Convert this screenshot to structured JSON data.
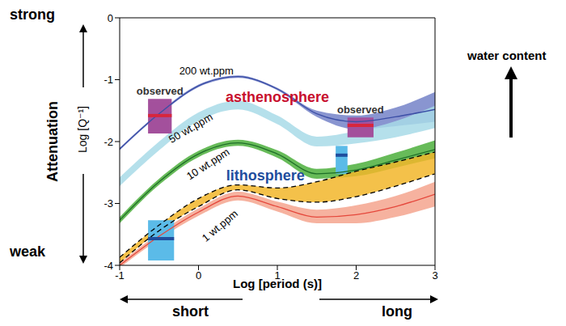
{
  "chart_data": {
    "type": "line",
    "x_label": "Log [period (s)]",
    "y_label": "Log [Q⁻¹]",
    "xlim": [
      -1,
      3
    ],
    "xticks": [
      -1,
      0,
      1,
      2,
      3
    ],
    "ylim": [
      -4,
      0
    ],
    "yticks": [
      -4,
      -3,
      -2,
      -1,
      0
    ],
    "grid": false,
    "x": [
      -1,
      -0.5,
      0,
      0.5,
      1,
      1.5,
      2,
      2.5,
      3
    ],
    "series": [
      {
        "name": "200 wt.ppm",
        "color": "#3b4ea6",
        "values": [
          -2.12,
          -1.55,
          -1.1,
          -0.95,
          -1.15,
          -1.55,
          -1.68,
          -1.6,
          -1.48
        ],
        "band": {
          "color": "#7482c8",
          "lower": [
            -2.14,
            -1.57,
            -1.12,
            -0.97,
            -1.17,
            -1.6,
            -1.8,
            -1.75,
            -1.68
          ],
          "upper": [
            -2.1,
            -1.53,
            -1.08,
            -0.93,
            -1.13,
            -1.5,
            -1.58,
            -1.45,
            -1.2
          ]
        }
      },
      {
        "name": "50 wt.ppm",
        "band": {
          "color": "#a8dbe8",
          "lower": [
            -2.72,
            -2.14,
            -1.67,
            -1.48,
            -1.72,
            -2.08,
            -2.03,
            -1.93,
            -1.78
          ],
          "upper": [
            -2.58,
            -2.0,
            -1.53,
            -1.34,
            -1.58,
            -1.92,
            -1.83,
            -1.67,
            -1.42
          ]
        }
      },
      {
        "name": "10 wt.ppm",
        "color": "#1e6e28",
        "values": [
          -3.27,
          -2.65,
          -2.2,
          -2.02,
          -2.2,
          -2.52,
          -2.46,
          -2.3,
          -2.13
        ],
        "band": {
          "color": "#4caf3c",
          "lower": [
            -3.32,
            -2.7,
            -2.25,
            -2.07,
            -2.26,
            -2.6,
            -2.56,
            -2.42,
            -2.27
          ],
          "upper": [
            -3.22,
            -2.6,
            -2.15,
            -1.97,
            -2.14,
            -2.44,
            -2.36,
            -2.18,
            -1.98
          ]
        }
      },
      {
        "band": {
          "color": "#f2b62a",
          "line_style": "dashed",
          "lower": [
            -3.96,
            -3.44,
            -3.05,
            -2.78,
            -2.92,
            -2.98,
            -2.89,
            -2.72,
            -2.52
          ],
          "upper": [
            -3.87,
            -3.35,
            -2.92,
            -2.7,
            -2.75,
            -2.65,
            -2.48,
            -2.33,
            -2.17
          ]
        }
      },
      {
        "name": "1 wt.ppm",
        "color": "#e5483c",
        "values": [
          -4.0,
          -3.53,
          -3.14,
          -2.88,
          -3.05,
          -3.22,
          -3.18,
          -3.05,
          -2.85
        ],
        "band": {
          "color": "#f5a48e",
          "lower": [
            -4.04,
            -3.58,
            -3.2,
            -2.95,
            -3.13,
            -3.32,
            -3.32,
            -3.22,
            -3.05
          ],
          "upper": [
            -3.96,
            -3.48,
            -3.08,
            -2.81,
            -2.97,
            -3.1,
            -3.03,
            -2.88,
            -2.65
          ]
        }
      }
    ],
    "boxes": [
      {
        "label": "observed",
        "x": [
          -0.64,
          -0.34
        ],
        "y": [
          -1.87,
          -1.31
        ],
        "color": "#a3509c",
        "line": {
          "value": -1.58,
          "color": "#d7263d"
        }
      },
      {
        "label": "observed",
        "x": [
          1.89,
          2.22
        ],
        "y": [
          -1.93,
          -1.61
        ],
        "color": "#a3509c",
        "line": {
          "value": -1.74,
          "color": "#d7263d"
        }
      },
      {
        "x": [
          -0.64,
          -0.31
        ],
        "y": [
          -3.92,
          -3.27
        ],
        "color": "#5bbbe8",
        "line": {
          "value": -3.57,
          "color": "#1f4e9e"
        }
      },
      {
        "x": [
          1.74,
          1.89
        ],
        "y": [
          -2.52,
          -2.07
        ],
        "color": "#5bbbe8",
        "line": {
          "value": -2.22,
          "color": "#1f4e9e"
        }
      }
    ],
    "annotations": [
      {
        "text": "asthenosphere",
        "color": "#c8102e"
      },
      {
        "text": "lithosphere",
        "color": "#1f4e9e"
      }
    ],
    "side_labels": [
      "strong",
      "weak",
      "Attenuation",
      "water content",
      "short",
      "long"
    ]
  }
}
